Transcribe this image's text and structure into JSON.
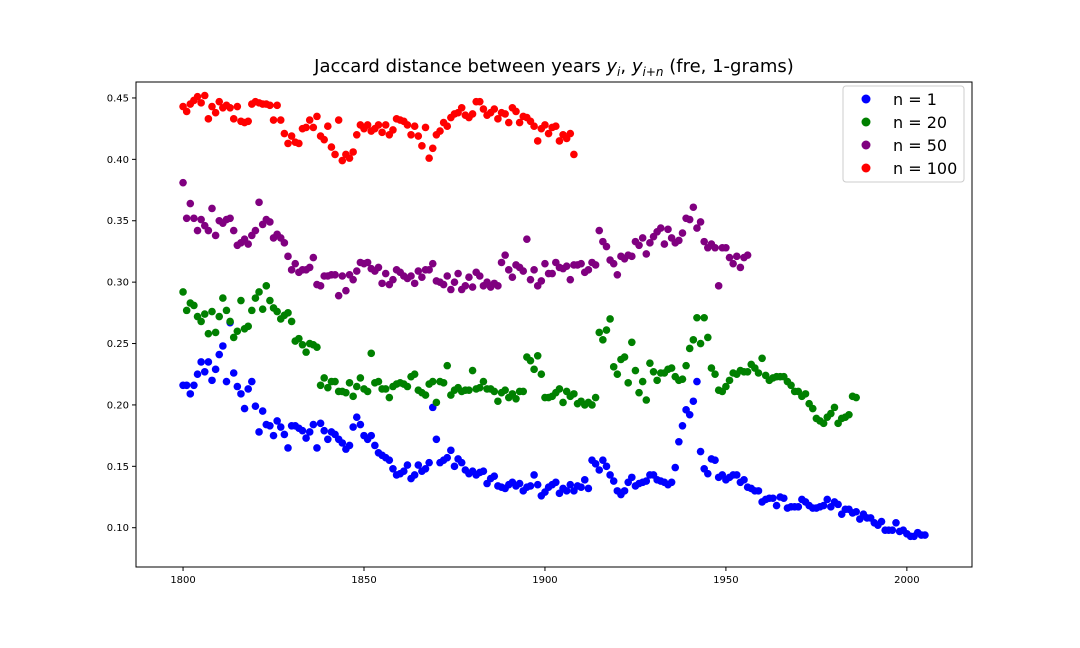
{
  "chart_data": {
    "type": "scatter",
    "title": "Jaccard distance between years y_i, y_{i+n} (fre, 1-grams)",
    "title_parts": {
      "prefix": "Jaccard distance between years ",
      "y1": "y",
      "s1": "i",
      "y2": "y",
      "s2": "i+n",
      "suffix": " (fre, 1-grams)"
    },
    "xlabel": "",
    "ylabel": "",
    "xlim": [
      1787,
      2018
    ],
    "ylim": [
      0.068,
      0.463
    ],
    "xticks": [
      1800,
      1850,
      1900,
      1950,
      2000
    ],
    "yticks": [
      0.1,
      0.15,
      0.2,
      0.25,
      0.3,
      0.35,
      0.4,
      0.45
    ],
    "grid": false,
    "legend_position": "top-right",
    "series": [
      {
        "name": "n = 1",
        "label": "n = 1",
        "color": "#0000ff",
        "start_year": 1800,
        "values": [
          0.216,
          0.216,
          0.209,
          0.216,
          0.225,
          0.235,
          0.227,
          0.235,
          0.22,
          0.229,
          0.241,
          0.248,
          0.219,
          0.267,
          0.226,
          0.215,
          0.209,
          0.197,
          0.213,
          0.219,
          0.199,
          0.178,
          0.195,
          0.184,
          0.183,
          0.175,
          0.187,
          0.182,
          0.176,
          0.165,
          0.183,
          0.183,
          0.181,
          0.179,
          0.173,
          0.178,
          0.184,
          0.165,
          0.185,
          0.179,
          0.172,
          0.178,
          0.176,
          0.172,
          0.169,
          0.164,
          0.167,
          0.182,
          0.19,
          0.184,
          0.175,
          0.172,
          0.175,
          0.167,
          0.161,
          0.159,
          0.157,
          0.155,
          0.148,
          0.143,
          0.144,
          0.146,
          0.151,
          0.14,
          0.143,
          0.151,
          0.146,
          0.148,
          0.153,
          0.198,
          0.172,
          0.153,
          0.155,
          0.157,
          0.163,
          0.15,
          0.156,
          0.153,
          0.147,
          0.144,
          0.146,
          0.143,
          0.145,
          0.146,
          0.136,
          0.14,
          0.142,
          0.134,
          0.133,
          0.132,
          0.135,
          0.137,
          0.134,
          0.136,
          0.13,
          0.133,
          0.134,
          0.143,
          0.135,
          0.126,
          0.129,
          0.133,
          0.135,
          0.137,
          0.128,
          0.132,
          0.13,
          0.135,
          0.13,
          0.134,
          0.133,
          0.139,
          0.132,
          0.155,
          0.152,
          0.147,
          0.155,
          0.15,
          0.143,
          0.138,
          0.13,
          0.127,
          0.13,
          0.137,
          0.141,
          0.134,
          0.136,
          0.137,
          0.138,
          0.143,
          0.143,
          0.139,
          0.138,
          0.137,
          0.135,
          0.137,
          0.149,
          0.17,
          0.183,
          0.196,
          0.192,
          0.203,
          0.219,
          0.162,
          0.148,
          0.144,
          0.156,
          0.155,
          0.141,
          0.143,
          0.139,
          0.141,
          0.143,
          0.143,
          0.137,
          0.139,
          0.133,
          0.132,
          0.13,
          0.13,
          0.121,
          0.123,
          0.124,
          0.124,
          0.118,
          0.125,
          0.124,
          0.116,
          0.117,
          0.117,
          0.117,
          0.123,
          0.121,
          0.118,
          0.116,
          0.116,
          0.117,
          0.118,
          0.123,
          0.117,
          0.121,
          0.119,
          0.111,
          0.115,
          0.115,
          0.112,
          0.113,
          0.107,
          0.111,
          0.108,
          0.108,
          0.104,
          0.102,
          0.105,
          0.098,
          0.098,
          0.098,
          0.104,
          0.097,
          0.098,
          0.095,
          0.093,
          0.093,
          0.096,
          0.094,
          0.094
        ]
      },
      {
        "name": "n = 20",
        "label": "n = 20",
        "color": "#008000",
        "start_year": 1800,
        "values": [
          0.292,
          0.277,
          0.283,
          0.281,
          0.272,
          0.268,
          0.274,
          0.258,
          0.276,
          0.259,
          0.272,
          0.287,
          0.277,
          0.268,
          0.255,
          0.26,
          0.285,
          0.262,
          0.264,
          0.277,
          0.287,
          0.292,
          0.278,
          0.297,
          0.285,
          0.279,
          0.276,
          0.27,
          0.273,
          0.275,
          0.268,
          0.252,
          0.254,
          0.249,
          0.243,
          0.25,
          0.249,
          0.247,
          0.216,
          0.222,
          0.214,
          0.219,
          0.219,
          0.211,
          0.211,
          0.21,
          0.218,
          0.207,
          0.215,
          0.222,
          0.213,
          0.211,
          0.242,
          0.218,
          0.219,
          0.213,
          0.213,
          0.206,
          0.215,
          0.217,
          0.218,
          0.217,
          0.215,
          0.223,
          0.225,
          0.212,
          0.21,
          0.208,
          0.217,
          0.219,
          0.202,
          0.219,
          0.218,
          0.232,
          0.208,
          0.212,
          0.214,
          0.211,
          0.212,
          0.212,
          0.228,
          0.213,
          0.214,
          0.219,
          0.213,
          0.213,
          0.211,
          0.203,
          0.21,
          0.212,
          0.206,
          0.209,
          0.205,
          0.211,
          0.211,
          0.239,
          0.236,
          0.229,
          0.24,
          0.225,
          0.206,
          0.206,
          0.207,
          0.21,
          0.213,
          0.202,
          0.211,
          0.207,
          0.209,
          0.201,
          0.203,
          0.2,
          0.202,
          0.2,
          0.206,
          0.259,
          0.253,
          0.261,
          0.27,
          0.231,
          0.225,
          0.237,
          0.239,
          0.218,
          0.251,
          0.228,
          0.21,
          0.219,
          0.204,
          0.234,
          0.227,
          0.22,
          0.226,
          0.226,
          0.229,
          0.23,
          0.223,
          0.22,
          0.221,
          0.232,
          0.246,
          0.253,
          0.271,
          0.25,
          0.271,
          0.255,
          0.23,
          0.225,
          0.212,
          0.211,
          0.215,
          0.22,
          0.226,
          0.225,
          0.228,
          0.227,
          0.227,
          0.233,
          0.23,
          0.226,
          0.238,
          0.224,
          0.22,
          0.222,
          0.223,
          0.223,
          0.223,
          0.219,
          0.216,
          0.211,
          0.211,
          0.207,
          0.209,
          0.201,
          0.197,
          0.189,
          0.187,
          0.185,
          0.19,
          0.193,
          0.198,
          0.185,
          0.189,
          0.19,
          0.192,
          0.207,
          0.206
        ]
      },
      {
        "name": "n = 50",
        "label": "n = 50",
        "color": "#800080",
        "start_year": 1800,
        "values": [
          0.381,
          0.352,
          0.364,
          0.352,
          0.342,
          0.351,
          0.346,
          0.342,
          0.36,
          0.338,
          0.35,
          0.348,
          0.351,
          0.352,
          0.342,
          0.33,
          0.332,
          0.335,
          0.331,
          0.338,
          0.342,
          0.365,
          0.347,
          0.351,
          0.349,
          0.336,
          0.339,
          0.336,
          0.332,
          0.321,
          0.31,
          0.315,
          0.308,
          0.31,
          0.31,
          0.312,
          0.32,
          0.298,
          0.297,
          0.305,
          0.305,
          0.306,
          0.306,
          0.289,
          0.305,
          0.293,
          0.306,
          0.302,
          0.309,
          0.316,
          0.315,
          0.316,
          0.311,
          0.309,
          0.312,
          0.299,
          0.307,
          0.298,
          0.302,
          0.31,
          0.308,
          0.305,
          0.303,
          0.305,
          0.299,
          0.309,
          0.304,
          0.31,
          0.31,
          0.315,
          0.301,
          0.3,
          0.298,
          0.305,
          0.294,
          0.3,
          0.307,
          0.294,
          0.297,
          0.304,
          0.296,
          0.308,
          0.305,
          0.297,
          0.3,
          0.296,
          0.299,
          0.297,
          0.316,
          0.322,
          0.31,
          0.304,
          0.314,
          0.312,
          0.309,
          0.335,
          0.302,
          0.31,
          0.297,
          0.301,
          0.315,
          0.307,
          0.307,
          0.316,
          0.312,
          0.311,
          0.313,
          0.302,
          0.314,
          0.314,
          0.315,
          0.308,
          0.31,
          0.316,
          0.314,
          0.342,
          0.333,
          0.329,
          0.318,
          0.315,
          0.306,
          0.321,
          0.319,
          0.322,
          0.321,
          0.333,
          0.33,
          0.336,
          0.323,
          0.332,
          0.337,
          0.341,
          0.344,
          0.331,
          0.343,
          0.336,
          0.332,
          0.334,
          0.34,
          0.352,
          0.351,
          0.361,
          0.344,
          0.349,
          0.333,
          0.328,
          0.331,
          0.328,
          0.297,
          0.328,
          0.328,
          0.32,
          0.315,
          0.321,
          0.312,
          0.32,
          0.322
        ]
      },
      {
        "name": "n = 100",
        "label": "n = 100",
        "color": "#ff0000",
        "start_year": 1800,
        "values": [
          0.443,
          0.439,
          0.445,
          0.448,
          0.451,
          0.446,
          0.452,
          0.433,
          0.443,
          0.438,
          0.447,
          0.442,
          0.444,
          0.442,
          0.433,
          0.443,
          0.431,
          0.43,
          0.431,
          0.445,
          0.447,
          0.446,
          0.445,
          0.445,
          0.444,
          0.432,
          0.444,
          0.432,
          0.421,
          0.413,
          0.419,
          0.414,
          0.413,
          0.425,
          0.426,
          0.432,
          0.426,
          0.435,
          0.419,
          0.416,
          0.427,
          0.41,
          0.404,
          0.432,
          0.399,
          0.404,
          0.401,
          0.406,
          0.42,
          0.428,
          0.425,
          0.428,
          0.423,
          0.425,
          0.428,
          0.422,
          0.428,
          0.42,
          0.424,
          0.433,
          0.432,
          0.431,
          0.428,
          0.42,
          0.427,
          0.419,
          0.411,
          0.426,
          0.401,
          0.409,
          0.42,
          0.423,
          0.43,
          0.427,
          0.434,
          0.437,
          0.438,
          0.442,
          0.436,
          0.434,
          0.437,
          0.447,
          0.447,
          0.441,
          0.436,
          0.438,
          0.441,
          0.433,
          0.438,
          0.437,
          0.43,
          0.442,
          0.439,
          0.43,
          0.435,
          0.434,
          0.431,
          0.427,
          0.415,
          0.425,
          0.428,
          0.421,
          0.426,
          0.427,
          0.415,
          0.42,
          0.417,
          0.421,
          0.404
        ]
      }
    ]
  }
}
